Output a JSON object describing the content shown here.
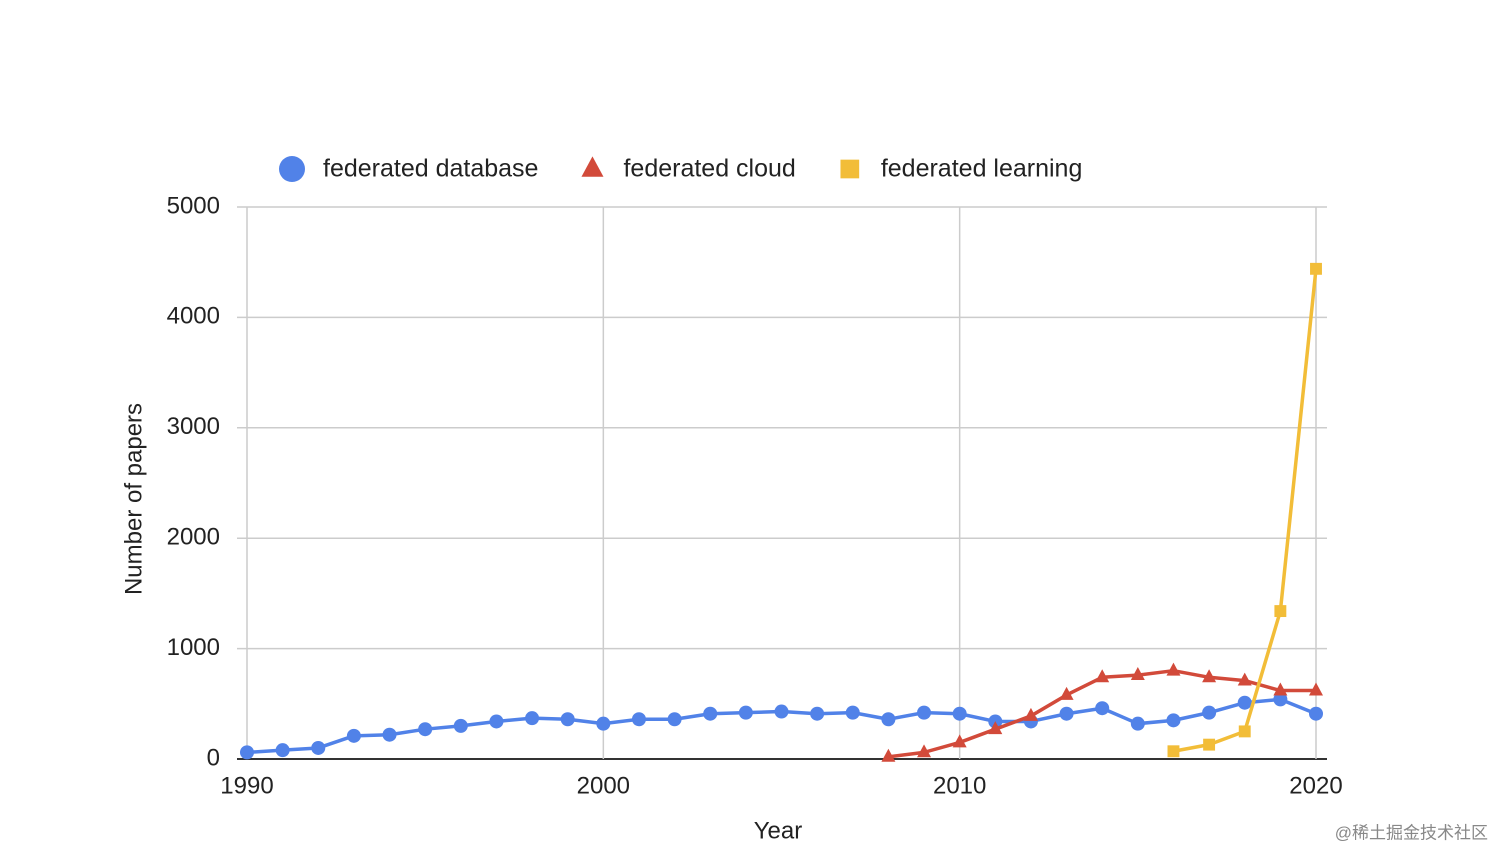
{
  "chart_data": {
    "type": "line",
    "x_label": "Year",
    "y_label": "Number of papers",
    "x": [
      1990,
      1991,
      1992,
      1993,
      1994,
      1995,
      1996,
      1997,
      1998,
      1999,
      2000,
      2001,
      2002,
      2003,
      2004,
      2005,
      2006,
      2007,
      2008,
      2009,
      2010,
      2011,
      2012,
      2013,
      2014,
      2015,
      2016,
      2017,
      2018,
      2019,
      2020
    ],
    "series": [
      {
        "name": "federated database",
        "color": "#5182e8",
        "marker": "circle",
        "values": [
          60,
          80,
          100,
          210,
          220,
          270,
          300,
          340,
          370,
          360,
          320,
          360,
          360,
          410,
          420,
          430,
          410,
          420,
          360,
          420,
          410,
          340,
          340,
          410,
          460,
          320,
          350,
          420,
          510,
          540,
          410
        ]
      },
      {
        "name": "federated cloud",
        "color": "#d24a3a",
        "marker": "triangle",
        "values": [
          null,
          null,
          null,
          null,
          null,
          null,
          null,
          null,
          null,
          null,
          null,
          null,
          null,
          null,
          null,
          null,
          null,
          null,
          20,
          60,
          150,
          270,
          390,
          580,
          740,
          760,
          800,
          740,
          710,
          620,
          620
        ]
      },
      {
        "name": "federated learning",
        "color": "#f2bd38",
        "marker": "square",
        "values": [
          null,
          null,
          null,
          null,
          null,
          null,
          null,
          null,
          null,
          null,
          null,
          null,
          null,
          null,
          null,
          null,
          null,
          null,
          null,
          null,
          null,
          null,
          null,
          null,
          null,
          null,
          70,
          130,
          250,
          1340,
          4440
        ]
      }
    ],
    "xlim": [
      1990,
      2020
    ],
    "xticks": [
      1990,
      2000,
      2010,
      2020
    ],
    "ylim": [
      0,
      5000
    ],
    "yticks": [
      0,
      1000,
      2000,
      3000,
      4000,
      5000
    ],
    "grid": true,
    "legend": "top",
    "watermark": "@稀土掘金技术社区"
  }
}
